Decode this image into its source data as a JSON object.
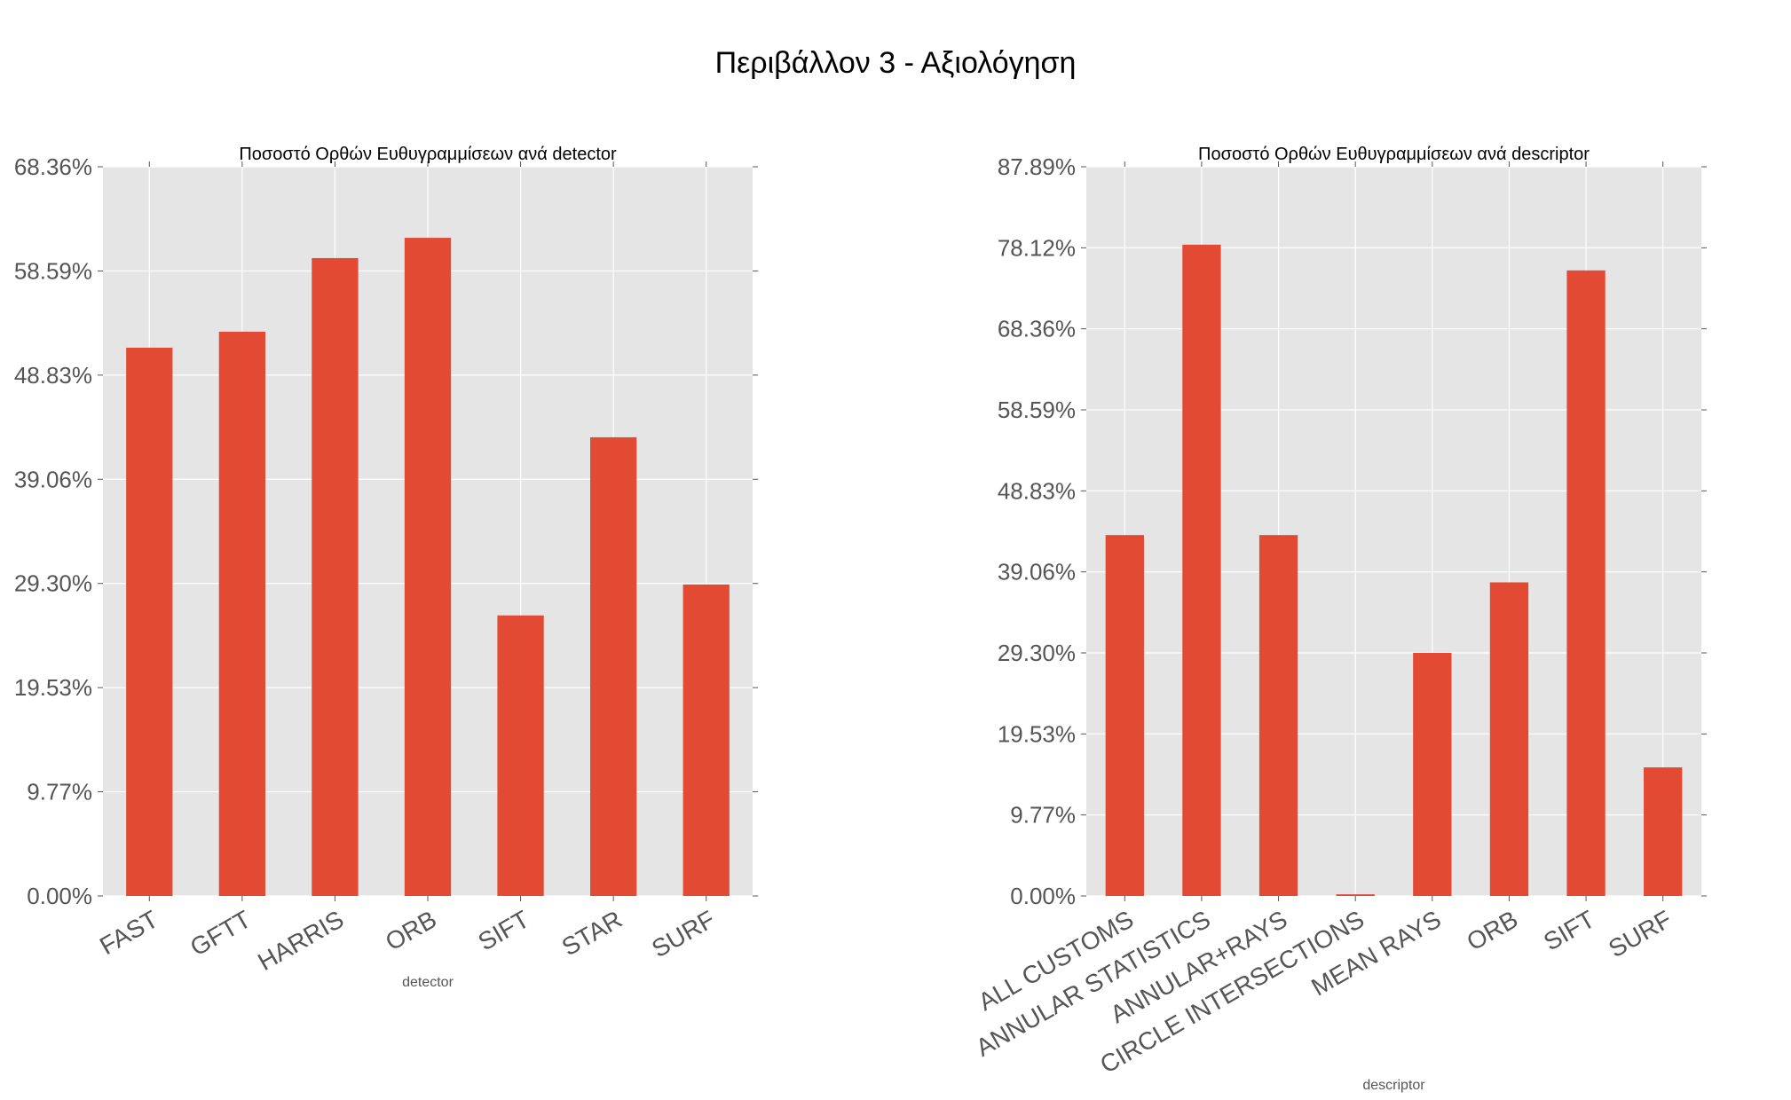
{
  "figure": {
    "title": "Περιβάλλον 3 - Αξιολόγηση"
  },
  "colors": {
    "bar": "#E24A33",
    "plot_bg": "#E5E5E5",
    "grid": "#FFFFFF",
    "tick_text": "#555555"
  },
  "chart_data": [
    {
      "type": "bar",
      "title": "Ποσοστό Ορθών Ευθυγραμμίσεων ανά detector",
      "xlabel": "detector",
      "ylabel": "",
      "categories": [
        "FAST",
        "GFTT",
        "HARRIS",
        "ORB",
        "SIFT",
        "STAR",
        "SURF"
      ],
      "values": [
        51.4,
        52.9,
        59.8,
        61.7,
        26.3,
        43.0,
        29.2
      ],
      "ylim": [
        0,
        68.36
      ],
      "yticks": [
        "0.00%",
        "9.77%",
        "19.53%",
        "29.30%",
        "39.06%",
        "48.83%",
        "58.59%",
        "68.36%"
      ],
      "grid": true
    },
    {
      "type": "bar",
      "title": "Ποσοστό Ορθών Ευθυγραμμίσεων ανά descriptor",
      "xlabel": "descriptor",
      "ylabel": "",
      "categories": [
        "ALL CUSTOMS",
        "ANNULAR STATISTICS",
        "ANNULAR+RAYS",
        "CIRCLE INTERSECTIONS",
        "MEAN RAYS",
        "ORB",
        "SIFT",
        "SURF"
      ],
      "values": [
        43.5,
        78.5,
        43.5,
        0.2,
        29.3,
        37.8,
        75.4,
        15.5
      ],
      "ylim": [
        0,
        87.89
      ],
      "yticks": [
        "0.00%",
        "9.77%",
        "19.53%",
        "29.30%",
        "39.06%",
        "48.83%",
        "58.59%",
        "68.36%",
        "78.12%",
        "87.89%"
      ],
      "grid": true
    }
  ]
}
